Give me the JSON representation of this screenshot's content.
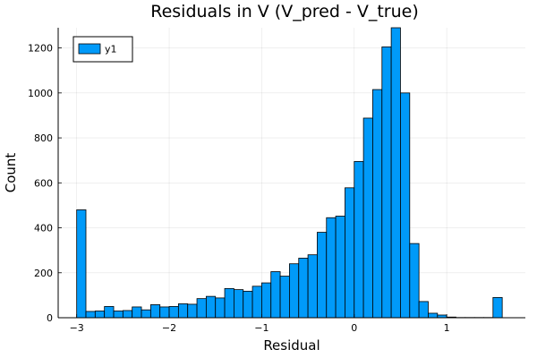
{
  "chart_data": {
    "type": "bar",
    "title": "Residuals in V (V_pred - V_true)",
    "xlabel": "Residual",
    "ylabel": "Count",
    "xlim": [
      -3.2,
      1.85
    ],
    "ylim": [
      0,
      1290
    ],
    "x_ticks": [
      -3,
      -2,
      -1,
      0,
      1
    ],
    "x_tick_labels": [
      "−3",
      "−2",
      "−1",
      "0",
      "1"
    ],
    "y_ticks": [
      0,
      200,
      400,
      600,
      800,
      1000,
      1200
    ],
    "y_tick_labels": [
      "0",
      "200",
      "400",
      "600",
      "800",
      "1000",
      "1200"
    ],
    "grid": true,
    "legend": {
      "position": "top-left",
      "entries": [
        "y1"
      ]
    },
    "bar_color": "#009af9",
    "bin_width": 0.1,
    "bins": [
      {
        "x0": -3.0,
        "count": 480
      },
      {
        "x0": -2.9,
        "count": 28
      },
      {
        "x0": -2.8,
        "count": 30
      },
      {
        "x0": -2.7,
        "count": 50
      },
      {
        "x0": -2.6,
        "count": 30
      },
      {
        "x0": -2.5,
        "count": 32
      },
      {
        "x0": -2.4,
        "count": 48
      },
      {
        "x0": -2.3,
        "count": 35
      },
      {
        "x0": -2.2,
        "count": 58
      },
      {
        "x0": -2.1,
        "count": 48
      },
      {
        "x0": -2.0,
        "count": 50
      },
      {
        "x0": -1.9,
        "count": 62
      },
      {
        "x0": -1.8,
        "count": 60
      },
      {
        "x0": -1.7,
        "count": 85
      },
      {
        "x0": -1.6,
        "count": 95
      },
      {
        "x0": -1.5,
        "count": 88
      },
      {
        "x0": -1.4,
        "count": 130
      },
      {
        "x0": -1.3,
        "count": 125
      },
      {
        "x0": -1.2,
        "count": 118
      },
      {
        "x0": -1.1,
        "count": 140
      },
      {
        "x0": -1.0,
        "count": 155
      },
      {
        "x0": -0.9,
        "count": 205
      },
      {
        "x0": -0.8,
        "count": 185
      },
      {
        "x0": -0.7,
        "count": 240
      },
      {
        "x0": -0.6,
        "count": 265
      },
      {
        "x0": -0.5,
        "count": 280
      },
      {
        "x0": -0.4,
        "count": 380
      },
      {
        "x0": -0.3,
        "count": 445
      },
      {
        "x0": -0.2,
        "count": 452
      },
      {
        "x0": -0.1,
        "count": 578
      },
      {
        "x0": 0.0,
        "count": 695
      },
      {
        "x0": 0.1,
        "count": 888
      },
      {
        "x0": 0.2,
        "count": 1015
      },
      {
        "x0": 0.3,
        "count": 1205
      },
      {
        "x0": 0.4,
        "count": 1290
      },
      {
        "x0": 0.5,
        "count": 1000
      },
      {
        "x0": 0.6,
        "count": 330
      },
      {
        "x0": 0.7,
        "count": 72
      },
      {
        "x0": 0.8,
        "count": 20
      },
      {
        "x0": 0.9,
        "count": 12
      },
      {
        "x0": 1.0,
        "count": 3
      },
      {
        "x0": 1.1,
        "count": 1
      },
      {
        "x0": 1.2,
        "count": 1
      },
      {
        "x0": 1.3,
        "count": 1
      },
      {
        "x0": 1.4,
        "count": 1
      },
      {
        "x0": 1.5,
        "count": 90
      }
    ]
  }
}
